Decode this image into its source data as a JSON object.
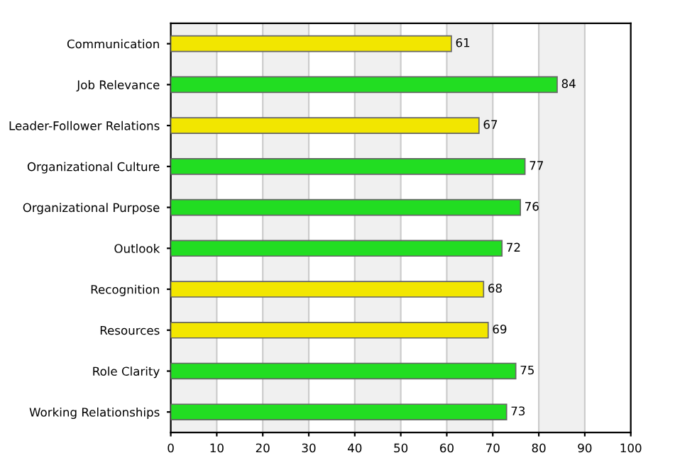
{
  "chart_data": {
    "type": "bar",
    "orientation": "horizontal",
    "categories": [
      "Communication",
      "Job Relevance",
      "Leader-Follower Relations",
      "Organizational Culture",
      "Organizational Purpose",
      "Outlook",
      "Recognition",
      "Resources",
      "Role Clarity",
      "Working Relationships"
    ],
    "values": [
      61,
      84,
      67,
      77,
      76,
      72,
      68,
      69,
      75,
      73
    ],
    "colors": [
      "#f2e600",
      "#22dd22",
      "#f2e600",
      "#22dd22",
      "#22dd22",
      "#22dd22",
      "#f2e600",
      "#f2e600",
      "#22dd22",
      "#22dd22"
    ],
    "data_labels": true,
    "xlim": [
      0,
      100
    ],
    "xticks": [
      0,
      10,
      20,
      30,
      40,
      50,
      60,
      70,
      80,
      90,
      100
    ],
    "grid": "x",
    "bands": [
      {
        "axis": "x",
        "from": 0,
        "to": 10,
        "color": "#f0f0f0"
      },
      {
        "axis": "x",
        "from": 20,
        "to": 30,
        "color": "#f0f0f0"
      },
      {
        "axis": "x",
        "from": 40,
        "to": 50,
        "color": "#f0f0f0"
      },
      {
        "axis": "x",
        "from": 60,
        "to": 70,
        "color": "#f0f0f0"
      },
      {
        "axis": "x",
        "from": 80,
        "to": 90,
        "color": "#f0f0f0"
      }
    ]
  }
}
